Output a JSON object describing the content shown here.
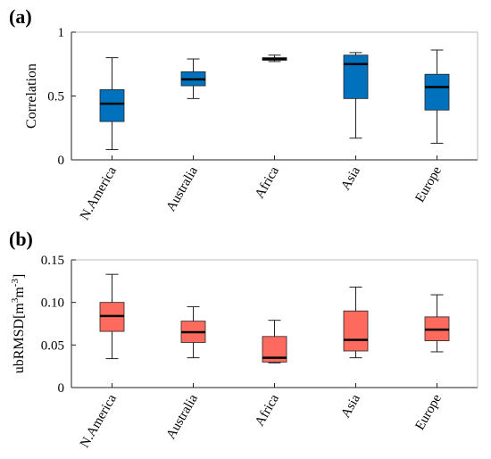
{
  "chart_data": [
    {
      "type": "box",
      "panel_label": "(a)",
      "ylabel": "Correlation",
      "ylim": [
        0,
        1
      ],
      "yticks": [
        0,
        0.5,
        1
      ],
      "ytick_labels": [
        "0",
        "0.5",
        "1"
      ],
      "categories": [
        "N.America",
        "Australia",
        "Africa",
        "Asia",
        "Europe"
      ],
      "box_color": "#0072BD",
      "boxes": [
        {
          "min": 0.08,
          "q1": 0.3,
          "median": 0.44,
          "q3": 0.55,
          "max": 0.8
        },
        {
          "min": 0.48,
          "q1": 0.58,
          "median": 0.63,
          "q3": 0.69,
          "max": 0.79
        },
        {
          "min": 0.77,
          "q1": 0.78,
          "median": 0.79,
          "q3": 0.8,
          "max": 0.82
        },
        {
          "min": 0.17,
          "q1": 0.48,
          "median": 0.75,
          "q3": 0.82,
          "max": 0.84
        },
        {
          "min": 0.13,
          "q1": 0.39,
          "median": 0.57,
          "q3": 0.67,
          "max": 0.86
        }
      ]
    },
    {
      "type": "box",
      "panel_label": "(b)",
      "ylabel": "ubRMSD[m",
      "ylabel_sup1": "3",
      "ylabel_mid": "m",
      "ylabel_sup2": "-3",
      "ylabel_end": "]",
      "ylim": [
        0,
        0.15
      ],
      "yticks": [
        0,
        0.05,
        0.1,
        0.15
      ],
      "ytick_labels": [
        "0",
        "0.05",
        "0.10",
        "0.15"
      ],
      "categories": [
        "N.America",
        "Australia",
        "Africa",
        "Asia",
        "Europe"
      ],
      "box_color": "#FF6A5E",
      "boxes": [
        {
          "min": 0.034,
          "q1": 0.066,
          "median": 0.084,
          "q3": 0.1,
          "max": 0.133
        },
        {
          "min": 0.035,
          "q1": 0.053,
          "median": 0.065,
          "q3": 0.078,
          "max": 0.095
        },
        {
          "min": 0.029,
          "q1": 0.03,
          "median": 0.035,
          "q3": 0.06,
          "max": 0.079
        },
        {
          "min": 0.035,
          "q1": 0.043,
          "median": 0.056,
          "q3": 0.09,
          "max": 0.118
        },
        {
          "min": 0.042,
          "q1": 0.055,
          "median": 0.068,
          "q3": 0.083,
          "max": 0.109
        }
      ]
    }
  ]
}
